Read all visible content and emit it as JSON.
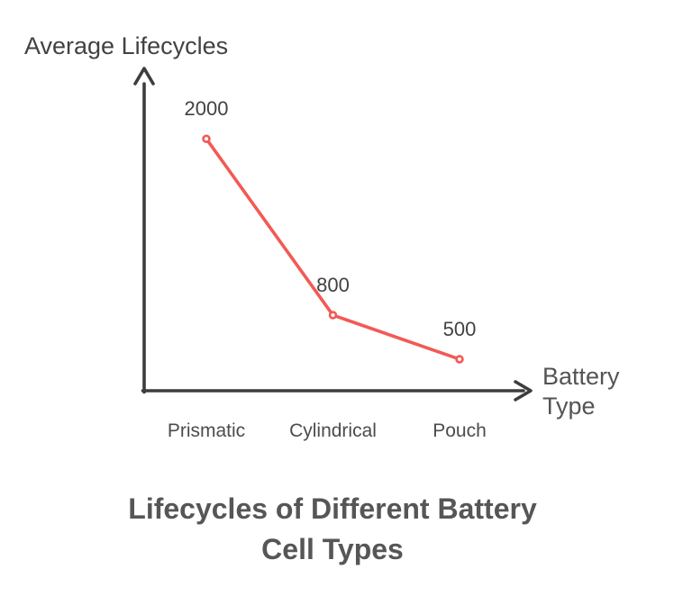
{
  "chart_data": {
    "type": "line",
    "title": "Lifecycles of Different Battery Cell Types",
    "title_lines": [
      "Lifecycles of Different Battery",
      "Cell Types"
    ],
    "ylabel": "Average Lifecycles",
    "xlabel": "Battery Type",
    "xlabel_lines": [
      "Battery",
      "Type"
    ],
    "categories": [
      "Prismatic",
      "Cylindrical",
      "Pouch"
    ],
    "values": [
      2000,
      800,
      500
    ],
    "value_labels": [
      "2000",
      "800",
      "500"
    ],
    "series": [
      {
        "name": "Average Lifecycles",
        "values": [
          2000,
          800,
          500
        ]
      }
    ],
    "legend": "none",
    "grid": false,
    "axis_style": "arrow-ended, no ticks, no numeric scale",
    "colors": {
      "line": "#f25a54",
      "marker_fill": "#ffffff",
      "axis": "#3d3d3d",
      "label_text": "#424242",
      "category_text": "#4c4c4c",
      "axis_title_text": "#545454",
      "title_text": "#565656",
      "background": "#ffffff"
    }
  }
}
